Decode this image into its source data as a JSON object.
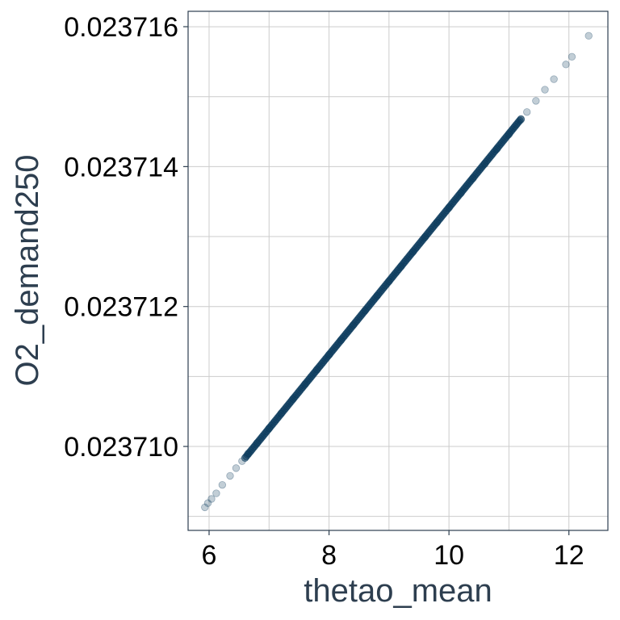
{
  "chart_data": {
    "type": "scatter",
    "title": "",
    "xlabel": "thetao_mean",
    "ylabel": "O2_demand250",
    "xlim": [
      5.65,
      12.65
    ],
    "ylim": [
      0.0237088,
      0.02371622
    ],
    "x_ticks": [
      6,
      8,
      10,
      12
    ],
    "x_tick_labels": [
      "6",
      "8",
      "10",
      "12"
    ],
    "y_ticks": [
      0.02371,
      0.023712,
      0.023714,
      0.023716
    ],
    "y_tick_labels": [
      "0.023710",
      "0.023712",
      "0.023714",
      "0.023716"
    ],
    "grid": true,
    "legend": "none",
    "point_color": "#0b3a5c",
    "frame_color": "#2d3e4f",
    "grid_color": "#cccccc",
    "relationship": "y increases linearly with x",
    "point_range": {
      "x": [
        5.93,
        12.33
      ],
      "y": [
        0.02370913,
        0.02371587
      ]
    },
    "series": [
      {
        "x": [
          5.93,
          5.98,
          6.04,
          6.12,
          6.22,
          6.35,
          6.45,
          6.55,
          6.65,
          6.8,
          7.0,
          7.2,
          7.4,
          7.6,
          7.8,
          8.0,
          8.2,
          8.4,
          8.6,
          8.8,
          9.0,
          9.2,
          9.4,
          9.6,
          9.8,
          10.0,
          10.2,
          10.4,
          10.6,
          10.8,
          11.0,
          11.2,
          11.3,
          11.45,
          11.6,
          11.75,
          11.95,
          12.05,
          12.33
        ],
        "y": [
          0.02370913,
          0.02370919,
          0.02370925,
          0.02370933,
          0.02370945,
          0.02370958,
          0.02370969,
          0.02370979,
          0.0237099,
          0.02371005,
          0.02371026,
          0.02371047,
          0.02371068,
          0.02371089,
          0.0237111,
          0.02371131,
          0.02371152,
          0.02371173,
          0.02371194,
          0.02371215,
          0.02371236,
          0.02371257,
          0.02371278,
          0.02371299,
          0.0237132,
          0.02371341,
          0.02371362,
          0.02371383,
          0.02371404,
          0.02371425,
          0.02371446,
          0.02371467,
          0.02371478,
          0.02371494,
          0.0237151,
          0.02371525,
          0.02371546,
          0.02371557,
          0.02371587
        ]
      }
    ]
  }
}
